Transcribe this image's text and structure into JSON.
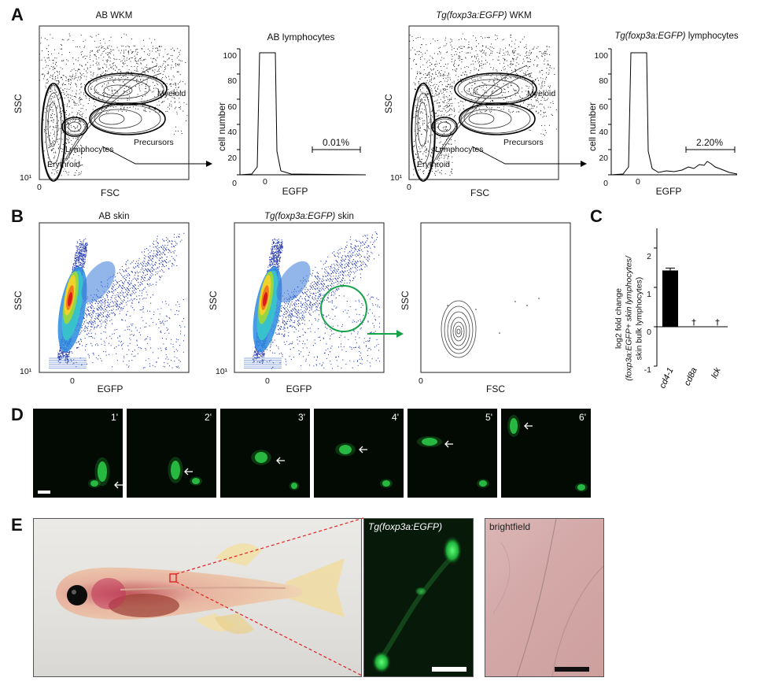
{
  "panel_labels": {
    "a": "A",
    "b": "B",
    "c": "C",
    "d": "D",
    "e": "E"
  },
  "panelA": {
    "ab_wkm": {
      "title": "AB WKM",
      "ylabel": "SSC",
      "xlabel": "FSC",
      "y_tick": "10¹",
      "x_tick": "0",
      "gates": {
        "myeloid": "Myeloid",
        "precursors": "Precursors",
        "lymphocytes": "Lymphocytes",
        "erythroid": "Erythroid"
      }
    },
    "ab_lymph": {
      "title": "AB lymphocytes",
      "ylabel": "cell number",
      "xlabel": "EGFP",
      "yticks": [
        "100",
        "80",
        "60",
        "40",
        "20",
        "0"
      ],
      "x_tick": "0",
      "gate_pct": "0.01%"
    },
    "tg_wkm": {
      "title_italic": "Tg(foxp3a:EGFP)",
      "title_rest": " WKM",
      "ylabel": "SSC",
      "xlabel": "FSC",
      "y_tick": "10¹",
      "x_tick": "0",
      "gates": {
        "myeloid": "Myeloid",
        "precursors": "Precursors",
        "lymphocytes": "Lymphocytes",
        "erythroid": "Erythroid"
      }
    },
    "tg_lymph": {
      "title_italic": "Tg(foxp3a:EGFP)",
      "title_rest": " lymphocytes",
      "ylabel": "cell number",
      "xlabel": "EGFP",
      "yticks": [
        "100",
        "80",
        "60",
        "40",
        "20",
        "0"
      ],
      "x_tick": "0",
      "gate_pct": "2.20%"
    }
  },
  "panelB": {
    "ab_skin": {
      "title": "AB skin",
      "ylabel": "SSC",
      "xlabel": "EGFP",
      "y_tick": "10¹",
      "x_tick": "0"
    },
    "tg_skin": {
      "title_italic": "Tg(foxp3a:EGFP)",
      "title_rest": " skin",
      "ylabel": "SSC",
      "xlabel": "EGFP",
      "y_tick": "10¹",
      "x_tick": "0"
    },
    "gated": {
      "ylabel": "SSC",
      "xlabel": "FSC",
      "x_tick": "0"
    }
  },
  "panelC": {
    "ylabel_line1": "log2 fold change",
    "ylabel_line2": "(foxp3a:EGFP+ skin lymphocytes/",
    "ylabel_line3": "skin bulk lymphocytes)",
    "yticks": [
      "2",
      "1",
      "0",
      "-1"
    ],
    "dagger": "†"
  },
  "chart_data": {
    "type": "bar",
    "categories": [
      "cd4-1",
      "cd8a",
      "lck"
    ],
    "values": [
      1.43,
      0,
      0
    ],
    "errors": [
      0.06,
      0,
      0
    ],
    "ylim": [
      -1,
      2.5
    ],
    "annotations": [
      "",
      "†",
      "†"
    ]
  },
  "panelD": {
    "frames": [
      "1'",
      "2'",
      "3'",
      "4'",
      "5'",
      "6'"
    ]
  },
  "panelE": {
    "fluor_title": "Tg(foxp3a:EGFP)",
    "bright_title": "brightfield"
  },
  "colors": {
    "egfp": "#29c94a",
    "gate_green": "#17a34a",
    "bar": "#000000",
    "inset_box": "#e02020",
    "dash": "#e02020"
  }
}
